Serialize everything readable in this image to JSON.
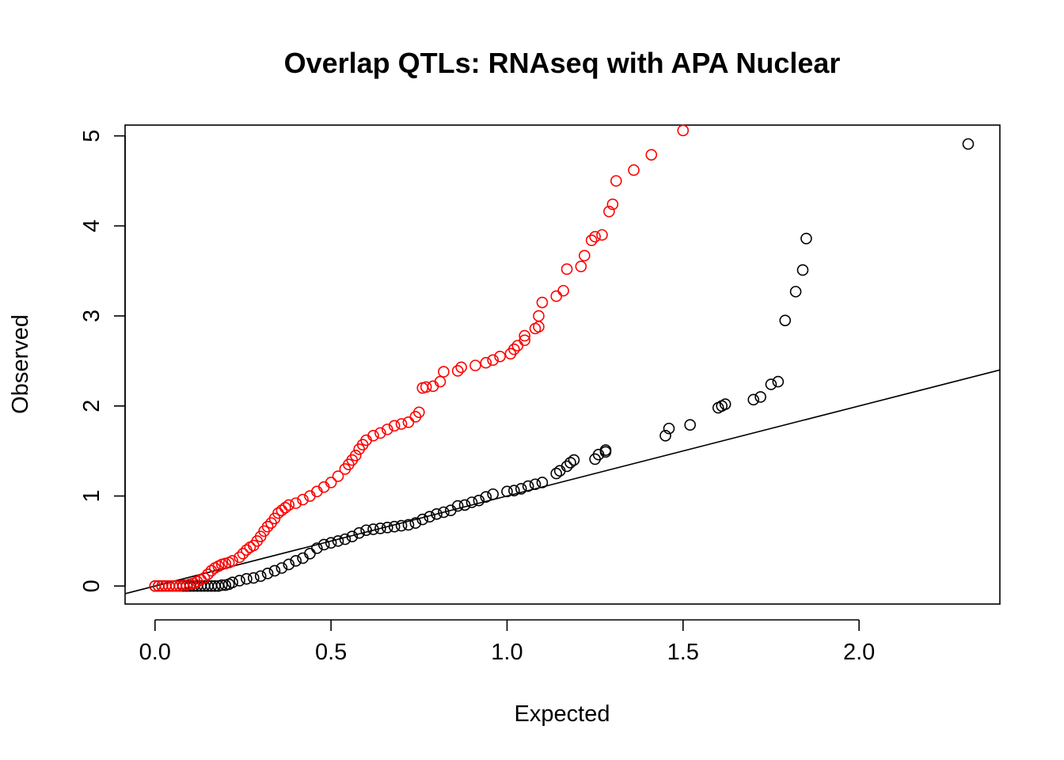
{
  "chart_data": {
    "type": "scatter",
    "title": "Overlap QTLs: RNAseq with APA Nuclear",
    "xlabel": "Expected",
    "ylabel": "Observed",
    "xlim": [
      -0.085,
      2.4
    ],
    "ylim": [
      -0.2,
      5.12
    ],
    "x_ticks": [
      0.0,
      0.5,
      1.0,
      1.5,
      2.0
    ],
    "x_tick_labels": [
      "0.0",
      "0.5",
      "1.0",
      "1.5",
      "2.0"
    ],
    "y_ticks": [
      0,
      1,
      2,
      3,
      4,
      5
    ],
    "y_tick_labels": [
      "0",
      "1",
      "2",
      "3",
      "4",
      "5"
    ],
    "grid": false,
    "reference_line": {
      "intercept": 0,
      "slope": 1
    },
    "series": [
      {
        "color": "#000000",
        "points": [
          [
            0.0,
            0.0
          ],
          [
            0.01,
            0.0
          ],
          [
            0.02,
            0.0
          ],
          [
            0.03,
            0.0
          ],
          [
            0.04,
            0.0
          ],
          [
            0.05,
            0.0
          ],
          [
            0.06,
            0.0
          ],
          [
            0.07,
            0.0
          ],
          [
            0.08,
            0.0
          ],
          [
            0.09,
            0.0
          ],
          [
            0.1,
            0.0
          ],
          [
            0.11,
            0.0
          ],
          [
            0.12,
            0.0
          ],
          [
            0.13,
            0.0
          ],
          [
            0.14,
            0.0
          ],
          [
            0.15,
            0.0
          ],
          [
            0.16,
            0.0
          ],
          [
            0.17,
            0.0
          ],
          [
            0.18,
            0.0
          ],
          [
            0.19,
            0.01
          ],
          [
            0.2,
            0.01
          ],
          [
            0.21,
            0.02
          ],
          [
            0.22,
            0.04
          ],
          [
            0.24,
            0.06
          ],
          [
            0.26,
            0.08
          ],
          [
            0.28,
            0.09
          ],
          [
            0.3,
            0.11
          ],
          [
            0.32,
            0.14
          ],
          [
            0.34,
            0.17
          ],
          [
            0.36,
            0.2
          ],
          [
            0.38,
            0.24
          ],
          [
            0.4,
            0.28
          ],
          [
            0.42,
            0.31
          ],
          [
            0.44,
            0.36
          ],
          [
            0.46,
            0.42
          ],
          [
            0.48,
            0.46
          ],
          [
            0.5,
            0.48
          ],
          [
            0.52,
            0.5
          ],
          [
            0.54,
            0.52
          ],
          [
            0.56,
            0.55
          ],
          [
            0.58,
            0.59
          ],
          [
            0.6,
            0.62
          ],
          [
            0.62,
            0.63
          ],
          [
            0.64,
            0.64
          ],
          [
            0.66,
            0.65
          ],
          [
            0.68,
            0.66
          ],
          [
            0.7,
            0.67
          ],
          [
            0.72,
            0.68
          ],
          [
            0.74,
            0.7
          ],
          [
            0.76,
            0.74
          ],
          [
            0.78,
            0.77
          ],
          [
            0.8,
            0.8
          ],
          [
            0.82,
            0.82
          ],
          [
            0.84,
            0.84
          ],
          [
            0.86,
            0.89
          ],
          [
            0.88,
            0.9
          ],
          [
            0.9,
            0.93
          ],
          [
            0.92,
            0.95
          ],
          [
            0.94,
            0.99
          ],
          [
            0.96,
            1.02
          ],
          [
            1.0,
            1.05
          ],
          [
            1.02,
            1.06
          ],
          [
            1.04,
            1.08
          ],
          [
            1.06,
            1.11
          ],
          [
            1.08,
            1.13
          ],
          [
            1.1,
            1.15
          ],
          [
            1.14,
            1.25
          ],
          [
            1.15,
            1.28
          ],
          [
            1.17,
            1.33
          ],
          [
            1.18,
            1.37
          ],
          [
            1.19,
            1.4
          ],
          [
            1.25,
            1.41
          ],
          [
            1.26,
            1.46
          ],
          [
            1.28,
            1.49
          ],
          [
            1.28,
            1.51
          ],
          [
            1.45,
            1.67
          ],
          [
            1.46,
            1.75
          ],
          [
            1.52,
            1.79
          ],
          [
            1.6,
            1.98
          ],
          [
            1.61,
            2.0
          ],
          [
            1.62,
            2.02
          ],
          [
            1.7,
            2.07
          ],
          [
            1.72,
            2.1
          ],
          [
            1.75,
            2.24
          ],
          [
            1.77,
            2.27
          ],
          [
            1.79,
            2.95
          ],
          [
            1.82,
            3.27
          ],
          [
            1.84,
            3.51
          ],
          [
            1.85,
            3.86
          ],
          [
            2.31,
            4.91
          ]
        ]
      },
      {
        "color": "#ff0000",
        "points": [
          [
            0.0,
            0.0
          ],
          [
            0.01,
            0.0
          ],
          [
            0.02,
            0.0
          ],
          [
            0.03,
            0.0
          ],
          [
            0.04,
            0.0
          ],
          [
            0.05,
            0.0
          ],
          [
            0.06,
            0.0
          ],
          [
            0.07,
            0.0
          ],
          [
            0.08,
            0.01
          ],
          [
            0.09,
            0.01
          ],
          [
            0.1,
            0.02
          ],
          [
            0.11,
            0.03
          ],
          [
            0.12,
            0.05
          ],
          [
            0.13,
            0.07
          ],
          [
            0.14,
            0.09
          ],
          [
            0.15,
            0.13
          ],
          [
            0.16,
            0.17
          ],
          [
            0.17,
            0.2
          ],
          [
            0.18,
            0.22
          ],
          [
            0.19,
            0.24
          ],
          [
            0.2,
            0.25
          ],
          [
            0.21,
            0.26
          ],
          [
            0.22,
            0.28
          ],
          [
            0.24,
            0.32
          ],
          [
            0.25,
            0.36
          ],
          [
            0.26,
            0.4
          ],
          [
            0.27,
            0.43
          ],
          [
            0.28,
            0.45
          ],
          [
            0.29,
            0.5
          ],
          [
            0.3,
            0.55
          ],
          [
            0.31,
            0.61
          ],
          [
            0.32,
            0.66
          ],
          [
            0.33,
            0.7
          ],
          [
            0.34,
            0.75
          ],
          [
            0.35,
            0.81
          ],
          [
            0.36,
            0.84
          ],
          [
            0.37,
            0.87
          ],
          [
            0.38,
            0.9
          ],
          [
            0.4,
            0.92
          ],
          [
            0.42,
            0.96
          ],
          [
            0.44,
            1.0
          ],
          [
            0.46,
            1.05
          ],
          [
            0.48,
            1.1
          ],
          [
            0.5,
            1.15
          ],
          [
            0.52,
            1.22
          ],
          [
            0.54,
            1.3
          ],
          [
            0.55,
            1.35
          ],
          [
            0.56,
            1.4
          ],
          [
            0.57,
            1.45
          ],
          [
            0.58,
            1.52
          ],
          [
            0.59,
            1.57
          ],
          [
            0.6,
            1.62
          ],
          [
            0.62,
            1.67
          ],
          [
            0.64,
            1.7
          ],
          [
            0.66,
            1.74
          ],
          [
            0.68,
            1.78
          ],
          [
            0.7,
            1.8
          ],
          [
            0.72,
            1.82
          ],
          [
            0.74,
            1.88
          ],
          [
            0.75,
            1.93
          ],
          [
            0.76,
            2.2
          ],
          [
            0.77,
            2.21
          ],
          [
            0.79,
            2.22
          ],
          [
            0.81,
            2.27
          ],
          [
            0.82,
            2.38
          ],
          [
            0.86,
            2.39
          ],
          [
            0.87,
            2.43
          ],
          [
            0.91,
            2.45
          ],
          [
            0.94,
            2.48
          ],
          [
            0.96,
            2.51
          ],
          [
            0.98,
            2.55
          ],
          [
            1.01,
            2.58
          ],
          [
            1.02,
            2.63
          ],
          [
            1.03,
            2.67
          ],
          [
            1.05,
            2.73
          ],
          [
            1.05,
            2.78
          ],
          [
            1.08,
            2.86
          ],
          [
            1.09,
            2.88
          ],
          [
            1.09,
            3.0
          ],
          [
            1.1,
            3.15
          ],
          [
            1.14,
            3.22
          ],
          [
            1.16,
            3.28
          ],
          [
            1.17,
            3.52
          ],
          [
            1.21,
            3.55
          ],
          [
            1.22,
            3.67
          ],
          [
            1.24,
            3.84
          ],
          [
            1.25,
            3.88
          ],
          [
            1.27,
            3.9
          ],
          [
            1.29,
            4.16
          ],
          [
            1.3,
            4.24
          ],
          [
            1.31,
            4.5
          ],
          [
            1.36,
            4.62
          ],
          [
            1.41,
            4.79
          ],
          [
            1.5,
            5.06
          ]
        ]
      }
    ]
  }
}
